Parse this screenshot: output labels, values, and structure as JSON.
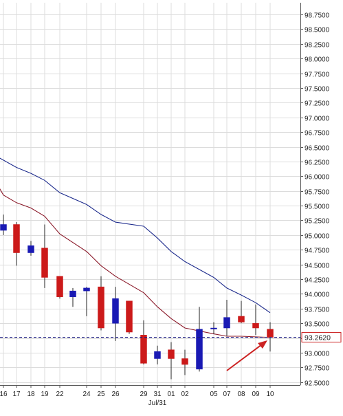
{
  "chart_data": {
    "type": "candlestick",
    "ylim": [
      92.45,
      98.95
    ],
    "y_ticks": [
      "98.7500",
      "98.5000",
      "98.2500",
      "98.0000",
      "97.7500",
      "97.5000",
      "97.2500",
      "97.0000",
      "96.7500",
      "96.5000",
      "96.2500",
      "96.0000",
      "95.7500",
      "95.5000",
      "95.2500",
      "95.0000",
      "94.7500",
      "94.5000",
      "94.2500",
      "94.0000",
      "93.7500",
      "93.5000",
      "93.2500",
      "93.0000",
      "92.7500",
      "92.5000"
    ],
    "x_tick_labels": [
      "16",
      "17",
      "18",
      "19",
      "22",
      "24",
      "25",
      "26",
      "29",
      "31",
      "01",
      "02",
      "05",
      "07",
      "08",
      "09",
      "10"
    ],
    "x_sub_label": "Jul/31",
    "grid": true,
    "last_price_label": "93.2620",
    "last_price": 93.262,
    "colors": {
      "up": "#1a1ab4",
      "down": "#cc1a1a",
      "ma_fast": "#8b1a2a",
      "ma_slow": "#1c2a8c",
      "grid": "#dcdcdc",
      "price_line": "#1a1a80",
      "arrow": "#cc2222",
      "label_border": "#cc2222"
    },
    "candles": [
      {
        "date": "16",
        "open": 95.08,
        "high": 95.35,
        "low": 95.0,
        "close": 95.18
      },
      {
        "date": "17",
        "open": 95.18,
        "high": 95.22,
        "low": 94.48,
        "close": 94.7
      },
      {
        "date": "18",
        "open": 94.7,
        "high": 94.9,
        "low": 94.65,
        "close": 94.82
      },
      {
        "date": "19",
        "open": 94.78,
        "high": 95.18,
        "low": 94.1,
        "close": 94.28
      },
      {
        "date": "22",
        "open": 94.3,
        "high": 94.3,
        "low": 93.92,
        "close": 93.95
      },
      {
        "date": "23",
        "open": 93.95,
        "high": 94.1,
        "low": 93.78,
        "close": 94.05
      },
      {
        "date": "24",
        "open": 94.05,
        "high": 94.12,
        "low": 93.62,
        "close": 94.1
      },
      {
        "date": "25",
        "open": 94.12,
        "high": 94.3,
        "low": 93.38,
        "close": 93.42
      },
      {
        "date": "26",
        "open": 93.5,
        "high": 94.12,
        "low": 93.2,
        "close": 93.92
      },
      {
        "date": "27",
        "open": 93.88,
        "high": 93.88,
        "low": 93.32,
        "close": 93.35
      },
      {
        "date": "29",
        "open": 93.3,
        "high": 93.55,
        "low": 92.8,
        "close": 92.82
      },
      {
        "date": "30",
        "open": 92.9,
        "high": 93.12,
        "low": 92.8,
        "close": 93.02
      },
      {
        "date": "01",
        "open": 93.05,
        "high": 93.18,
        "low": 92.55,
        "close": 92.9
      },
      {
        "date": "02",
        "open": 92.9,
        "high": 93.05,
        "low": 92.62,
        "close": 92.8
      },
      {
        "date": "03",
        "open": 92.72,
        "high": 93.78,
        "low": 92.68,
        "close": 93.4
      },
      {
        "date": "05",
        "open": 93.42,
        "high": 93.52,
        "low": 93.32,
        "close": 93.42
      },
      {
        "date": "07",
        "open": 93.42,
        "high": 93.9,
        "low": 93.28,
        "close": 93.6
      },
      {
        "date": "08",
        "open": 93.62,
        "high": 93.88,
        "low": 93.5,
        "close": 93.52
      },
      {
        "date": "09",
        "open": 93.5,
        "high": 93.82,
        "low": 93.3,
        "close": 93.42
      },
      {
        "date": "10",
        "open": 93.4,
        "high": 93.52,
        "low": 93.02,
        "close": 93.26
      }
    ],
    "ma_fast": [
      {
        "date": "15",
        "value": 95.82
      },
      {
        "date": "16",
        "value": 95.68
      },
      {
        "date": "17",
        "value": 95.55
      },
      {
        "date": "18",
        "value": 95.46
      },
      {
        "date": "19",
        "value": 95.32
      },
      {
        "date": "22",
        "value": 95.02
      },
      {
        "date": "24",
        "value": 94.72
      },
      {
        "date": "25",
        "value": 94.48
      },
      {
        "date": "26",
        "value": 94.3
      },
      {
        "date": "29",
        "value": 94.02
      },
      {
        "date": "31",
        "value": 93.78
      },
      {
        "date": "01",
        "value": 93.58
      },
      {
        "date": "02",
        "value": 93.42
      },
      {
        "date": "05",
        "value": 93.32
      },
      {
        "date": "07",
        "value": 93.28
      },
      {
        "date": "08",
        "value": 93.28
      },
      {
        "date": "09",
        "value": 93.27
      },
      {
        "date": "10",
        "value": 93.26
      }
    ],
    "ma_slow": [
      {
        "date": "15",
        "value": 96.32
      },
      {
        "date": "17",
        "value": 96.15
      },
      {
        "date": "18",
        "value": 96.05
      },
      {
        "date": "19",
        "value": 95.93
      },
      {
        "date": "22",
        "value": 95.72
      },
      {
        "date": "24",
        "value": 95.52
      },
      {
        "date": "25",
        "value": 95.35
      },
      {
        "date": "26",
        "value": 95.22
      },
      {
        "date": "29",
        "value": 95.15
      },
      {
        "date": "31",
        "value": 94.95
      },
      {
        "date": "01",
        "value": 94.72
      },
      {
        "date": "02",
        "value": 94.55
      },
      {
        "date": "05",
        "value": 94.28
      },
      {
        "date": "07",
        "value": 94.1
      },
      {
        "date": "08",
        "value": 93.98
      },
      {
        "date": "09",
        "value": 93.85
      },
      {
        "date": "10",
        "value": 93.68
      }
    ]
  }
}
